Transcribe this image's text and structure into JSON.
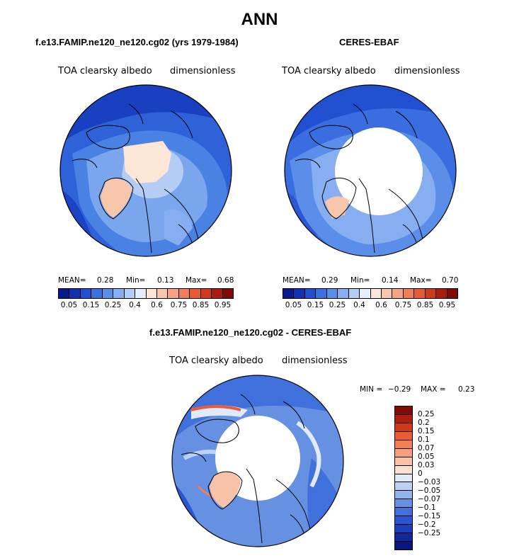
{
  "title": "ANN",
  "panels": {
    "model": {
      "title": "f.e13.FAMIP.ne120_ne120.cg02 (yrs 1979-1984)",
      "variable": "TOA clearsky albedo",
      "units": "dimensionless",
      "mean_label": "MEAN=",
      "mean": "0.28",
      "min_label": "Min=",
      "min": "0.13",
      "max_label": "Max=",
      "max": "0.68"
    },
    "obs": {
      "title": "CERES-EBAF",
      "variable": "TOA clearsky albedo",
      "units": "dimensionless",
      "mean_label": "MEAN=",
      "mean": "0.29",
      "min_label": "Min=",
      "min": "0.14",
      "max_label": "Max=",
      "max": "0.70"
    },
    "diff": {
      "title": "f.e13.FAMIP.ne120_ne120.cg02 - CERES-EBAF",
      "variable": "TOA clearsky albedo",
      "units": "dimensionless",
      "min_label": "MIN =",
      "min": "−0.29",
      "max_label": "MAX =",
      "max": "0.23"
    }
  },
  "colorbar": {
    "colors": [
      "#0a1a8c",
      "#1230b0",
      "#2050d0",
      "#3a70e0",
      "#5a8ee8",
      "#86aef0",
      "#b4cdf5",
      "#e4eefc",
      "#fde6d8",
      "#f8c6ab",
      "#f4a482",
      "#ef7e58",
      "#e65a34",
      "#cf3a1a",
      "#a81e0c",
      "#800a04"
    ],
    "ticks": [
      "0.05",
      "0.15",
      "0.25",
      "0.4",
      "0.6",
      "0.75",
      "0.85",
      "0.95"
    ]
  },
  "diff_colorbar": {
    "colors": [
      "#800a04",
      "#ae1e0e",
      "#d0381a",
      "#ea5c34",
      "#f27e56",
      "#f4a080",
      "#f8c2a8",
      "#fce0d2",
      "#e0eafa",
      "#bcd2f4",
      "#90b4ec",
      "#6690e2",
      "#4070dc",
      "#2a56d2",
      "#1a40bc",
      "#10289c",
      "#0a1680"
    ],
    "labels": [
      "0.25",
      "0.2",
      "0.15",
      "0.1",
      "0.07",
      "0.05",
      "0.03",
      "0",
      "−0.03",
      "−0.05",
      "−0.07",
      "−0.1",
      "−0.15",
      "−0.2",
      "−0.25"
    ]
  }
}
